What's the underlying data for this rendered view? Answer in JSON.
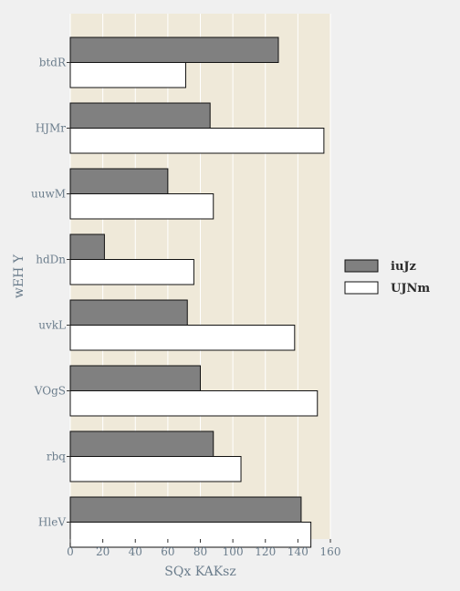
{
  "chart_data": {
    "type": "bar",
    "orientation": "horizontal",
    "categories": [
      "btdR",
      "HJMr",
      "uuwM",
      "hdDn",
      "uvkL",
      "VOgS",
      "rbq",
      "HleV"
    ],
    "series": [
      {
        "name": "iuJz",
        "color": "#808080",
        "values": [
          128,
          86,
          60,
          21,
          72,
          80,
          88,
          142
        ]
      },
      {
        "name": "UJNm",
        "color": "#ffffff",
        "values": [
          71,
          156,
          88,
          76,
          138,
          152,
          105,
          148
        ]
      }
    ],
    "xlabel": "SQx KAKsz",
    "ylabel": "wEH Y",
    "xlim": [
      0,
      160
    ],
    "xticks": [
      "0",
      "20",
      "40",
      "60",
      "80",
      "100",
      "120",
      "140",
      "160"
    ],
    "grid": true,
    "legend_position": "right",
    "background": "#efe9d9"
  }
}
